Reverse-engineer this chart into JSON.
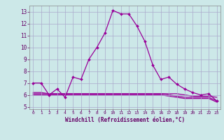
{
  "hours": [
    0,
    1,
    2,
    3,
    4,
    5,
    6,
    7,
    8,
    9,
    10,
    11,
    12,
    13,
    14,
    15,
    16,
    17,
    18,
    19,
    20,
    21,
    22,
    23
  ],
  "line1": [
    7.0,
    7.0,
    6.0,
    6.5,
    5.8,
    7.5,
    7.3,
    9.0,
    10.0,
    11.2,
    13.1,
    12.8,
    12.8,
    11.8,
    10.5,
    8.5,
    7.3,
    7.5,
    6.9,
    6.5,
    6.2,
    6.0,
    6.1,
    5.5
  ],
  "line2": [
    6.2,
    6.2,
    6.1,
    6.1,
    6.1,
    6.1,
    6.1,
    6.1,
    6.1,
    6.1,
    6.1,
    6.1,
    6.1,
    6.1,
    6.1,
    6.1,
    6.1,
    6.1,
    6.1,
    6.0,
    5.9,
    5.9,
    5.9,
    5.8
  ],
  "line3": [
    6.1,
    6.1,
    6.1,
    6.1,
    6.1,
    6.1,
    6.1,
    6.1,
    6.1,
    6.1,
    6.1,
    6.1,
    6.1,
    6.1,
    6.1,
    6.1,
    6.1,
    6.0,
    5.9,
    5.8,
    5.8,
    5.8,
    5.8,
    5.5
  ],
  "line4": [
    6.0,
    6.0,
    6.0,
    6.0,
    6.0,
    6.0,
    6.0,
    6.0,
    6.0,
    6.0,
    6.0,
    6.0,
    6.0,
    6.0,
    6.0,
    6.0,
    6.0,
    5.9,
    5.8,
    5.7,
    5.7,
    5.7,
    5.7,
    5.4
  ],
  "line_color": "#990099",
  "bg_color": "#cce8e8",
  "grid_color": "#aaaacc",
  "xlabel": "Windchill (Refroidissement éolien,°C)",
  "yticks": [
    5,
    6,
    7,
    8,
    9,
    10,
    11,
    12,
    13
  ],
  "xticks": [
    0,
    1,
    2,
    3,
    4,
    5,
    6,
    7,
    8,
    9,
    10,
    11,
    12,
    13,
    14,
    15,
    16,
    17,
    18,
    19,
    20,
    21,
    22,
    23
  ],
  "ylim": [
    4.8,
    13.5
  ],
  "xlim": [
    -0.5,
    23.5
  ],
  "figsize": [
    3.2,
    2.0
  ],
  "dpi": 100
}
